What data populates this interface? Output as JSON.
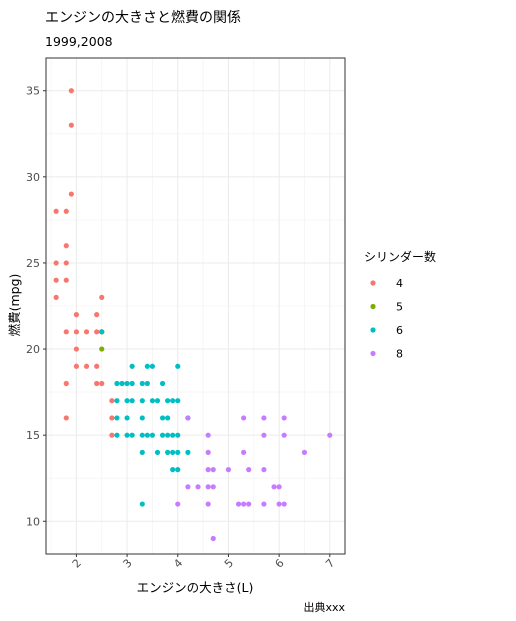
{
  "chart_data": {
    "type": "scatter",
    "title": "エンジンの大きさと燃費の関係",
    "subtitle": "1999,2008",
    "xlabel": "エンジンの大きさ(L)",
    "ylabel": "燃費(mpg)",
    "caption": "出典xxx",
    "xlim": [
      1.4,
      7.3
    ],
    "ylim": [
      8.1,
      36.9
    ],
    "xticks": [
      2,
      3,
      4,
      5,
      6,
      7
    ],
    "yticks": [
      10,
      15,
      20,
      25,
      30,
      35
    ],
    "grid": true,
    "legend_title": "シリンダー数",
    "legend_position": "right",
    "series": [
      {
        "name": "4",
        "color": "#F8766D",
        "points": [
          [
            1.6,
            28
          ],
          [
            1.6,
            25
          ],
          [
            1.6,
            24
          ],
          [
            1.6,
            23
          ],
          [
            1.8,
            28
          ],
          [
            1.8,
            26
          ],
          [
            1.8,
            25
          ],
          [
            1.8,
            24
          ],
          [
            1.8,
            21
          ],
          [
            1.8,
            18
          ],
          [
            1.8,
            16
          ],
          [
            1.9,
            35
          ],
          [
            1.9,
            33
          ],
          [
            1.9,
            29
          ],
          [
            2.0,
            22
          ],
          [
            2.0,
            21
          ],
          [
            2.0,
            20
          ],
          [
            2.0,
            19
          ],
          [
            2.2,
            21
          ],
          [
            2.2,
            19
          ],
          [
            2.4,
            22
          ],
          [
            2.4,
            21
          ],
          [
            2.4,
            19
          ],
          [
            2.4,
            18
          ],
          [
            2.5,
            23
          ],
          [
            2.5,
            21
          ],
          [
            2.5,
            18
          ],
          [
            2.7,
            17
          ],
          [
            2.7,
            16
          ],
          [
            2.7,
            15
          ]
        ]
      },
      {
        "name": "5",
        "color": "#7CAE00",
        "points": [
          [
            2.5,
            21
          ],
          [
            2.5,
            20
          ]
        ]
      },
      {
        "name": "6",
        "color": "#00BFC4",
        "points": [
          [
            2.5,
            21
          ],
          [
            2.8,
            18
          ],
          [
            2.8,
            17
          ],
          [
            2.8,
            16
          ],
          [
            2.8,
            15
          ],
          [
            2.9,
            18
          ],
          [
            3.0,
            18
          ],
          [
            3.0,
            17
          ],
          [
            3.0,
            16
          ],
          [
            3.0,
            15
          ],
          [
            3.1,
            19
          ],
          [
            3.1,
            18
          ],
          [
            3.1,
            17
          ],
          [
            3.1,
            15
          ],
          [
            3.3,
            18
          ],
          [
            3.3,
            17
          ],
          [
            3.3,
            16
          ],
          [
            3.3,
            15
          ],
          [
            3.3,
            14
          ],
          [
            3.3,
            11
          ],
          [
            3.4,
            19
          ],
          [
            3.4,
            18
          ],
          [
            3.4,
            15
          ],
          [
            3.5,
            19
          ],
          [
            3.5,
            17
          ],
          [
            3.5,
            15
          ],
          [
            3.6,
            17
          ],
          [
            3.6,
            14
          ],
          [
            3.7,
            18
          ],
          [
            3.7,
            16
          ],
          [
            3.7,
            15
          ],
          [
            3.8,
            17
          ],
          [
            3.8,
            16
          ],
          [
            3.8,
            15
          ],
          [
            3.8,
            14
          ],
          [
            3.9,
            17
          ],
          [
            3.9,
            15
          ],
          [
            3.9,
            14
          ],
          [
            3.9,
            13
          ],
          [
            4.0,
            19
          ],
          [
            4.0,
            17
          ],
          [
            4.0,
            15
          ],
          [
            4.0,
            14
          ],
          [
            4.0,
            13
          ],
          [
            4.2,
            16
          ],
          [
            4.2,
            14
          ]
        ]
      },
      {
        "name": "8",
        "color": "#C77CFF",
        "points": [
          [
            4.0,
            11
          ],
          [
            4.2,
            16
          ],
          [
            4.2,
            12
          ],
          [
            4.4,
            12
          ],
          [
            4.6,
            15
          ],
          [
            4.6,
            14
          ],
          [
            4.6,
            13
          ],
          [
            4.6,
            12
          ],
          [
            4.6,
            11
          ],
          [
            4.7,
            13
          ],
          [
            4.7,
            12
          ],
          [
            4.7,
            9
          ],
          [
            5.0,
            13
          ],
          [
            5.2,
            11
          ],
          [
            5.3,
            16
          ],
          [
            5.3,
            14
          ],
          [
            5.3,
            11
          ],
          [
            5.4,
            13
          ],
          [
            5.4,
            11
          ],
          [
            5.7,
            16
          ],
          [
            5.7,
            15
          ],
          [
            5.7,
            13
          ],
          [
            5.7,
            11
          ],
          [
            5.9,
            12
          ],
          [
            6.0,
            12
          ],
          [
            6.0,
            11
          ],
          [
            6.1,
            16
          ],
          [
            6.1,
            15
          ],
          [
            6.1,
            11
          ],
          [
            6.5,
            14
          ],
          [
            7.0,
            15
          ]
        ]
      }
    ]
  }
}
